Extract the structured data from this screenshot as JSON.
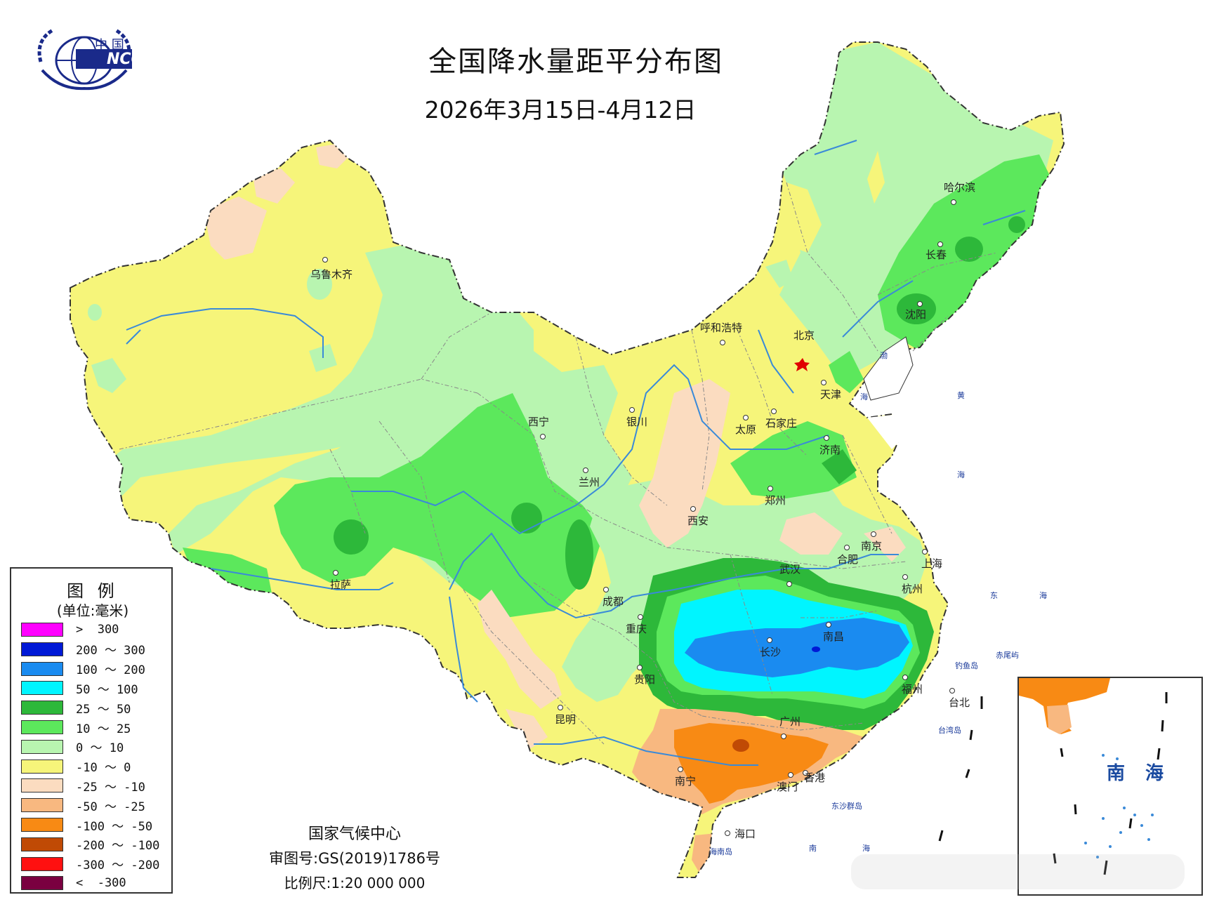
{
  "title": "全国降水量距平分布图",
  "subtitle": "2026年3月15日-4月12日",
  "logo": {
    "cn": "中 国",
    "en": "NCC"
  },
  "legend": {
    "title": "图 例",
    "unit": "(单位:毫米)",
    "items": [
      {
        "label": ">  300",
        "color": "#ff00ff"
      },
      {
        "label": "200 ～ 300",
        "color": "#0019d6"
      },
      {
        "label": "100 ～ 200",
        "color": "#1a8bf0"
      },
      {
        "label": "50 ～ 100",
        "color": "#00f5ff"
      },
      {
        "label": "25 ～ 50",
        "color": "#2db83a"
      },
      {
        "label": "10 ～ 25",
        "color": "#5ce85c"
      },
      {
        "label": "0 ～ 10",
        "color": "#b8f5b0"
      },
      {
        "label": "-10 ～ 0",
        "color": "#f6f57a"
      },
      {
        "label": "-25 ～ -10",
        "color": "#fbdcc0"
      },
      {
        "label": "-50 ～ -25",
        "color": "#f8b880"
      },
      {
        "label": "-100 ～ -50",
        "color": "#f88a14"
      },
      {
        "label": "-200 ～ -100",
        "color": "#c04a05"
      },
      {
        "label": "-300 ～ -200",
        "color": "#ff1010"
      },
      {
        "label": "<  -300",
        "color": "#7a0040"
      }
    ]
  },
  "cities": [
    {
      "name": "乌鲁木齐"
    },
    {
      "name": "哈尔滨"
    },
    {
      "name": "长春"
    },
    {
      "name": "沈阳"
    },
    {
      "name": "呼和浩特"
    },
    {
      "name": "北京"
    },
    {
      "name": "天津"
    },
    {
      "name": "石家庄"
    },
    {
      "name": "太原"
    },
    {
      "name": "济南"
    },
    {
      "name": "银川"
    },
    {
      "name": "西宁"
    },
    {
      "name": "兰州"
    },
    {
      "name": "郑州"
    },
    {
      "name": "西安"
    },
    {
      "name": "南京"
    },
    {
      "name": "合肥"
    },
    {
      "name": "上海"
    },
    {
      "name": "拉萨"
    },
    {
      "name": "武汉"
    },
    {
      "name": "杭州"
    },
    {
      "name": "成都"
    },
    {
      "name": "重庆"
    },
    {
      "name": "南昌"
    },
    {
      "name": "长沙"
    },
    {
      "name": "贵阳"
    },
    {
      "name": "福州"
    },
    {
      "name": "台北"
    },
    {
      "name": "昆明"
    },
    {
      "name": "广州"
    },
    {
      "name": "南宁"
    },
    {
      "name": "澳门"
    },
    {
      "name": "香港"
    },
    {
      "name": "海口"
    }
  ],
  "seas": [
    "渤",
    "海",
    "黄",
    "海",
    "东",
    "海",
    "南",
    "海",
    "钓鱼岛",
    "赤尾屿",
    "台湾岛",
    "海南岛",
    "东沙群岛"
  ],
  "inset": {
    "label": "南 海"
  },
  "footer": {
    "org": "国家气候中心",
    "review": "审图号:GS(2019)1786号",
    "scale": "比例尺:1:20 000 000"
  },
  "colors": {
    "border": "#777777",
    "river": "#3a8ad8",
    "capital_star": "#e00000"
  }
}
